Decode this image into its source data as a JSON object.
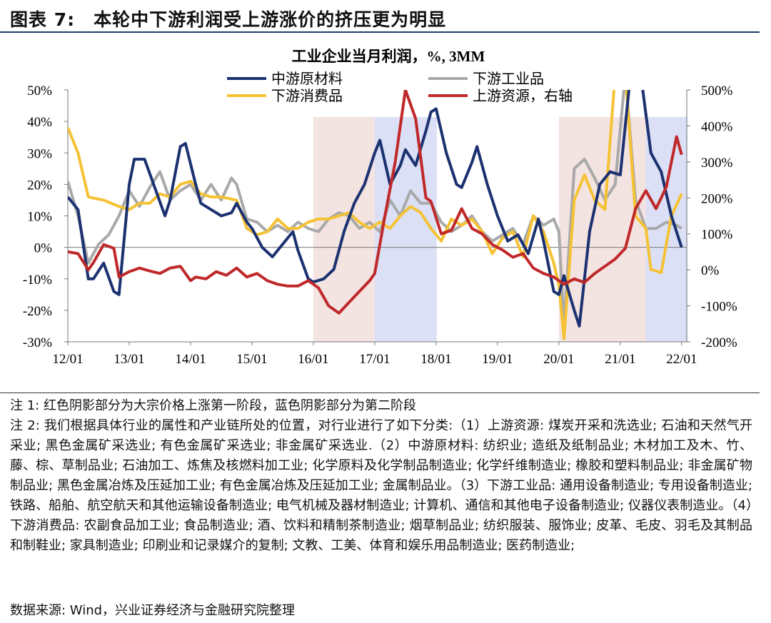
{
  "figure": {
    "title": "图表 7:　本轮中下游利润受上游涨价的挤压更为明显"
  },
  "notes": {
    "note1": "注 1:  红色阴影部分为大宗价格上涨第一阶段，蓝色阴影部分为第二阶段",
    "note2": "注 2:  我们根据具体行业的属性和产业链所处的位置，对行业进行了如下分类:（1）上游资源: 煤炭开采和洗选业; 石油和天然气开采业; 黑色金属矿采选业; 有色金属矿采选业; 非金属矿采选业.（2）中游原材料: 纺织业; 造纸及纸制品业; 木材加工及木、竹、藤、棕、草制品业; 石油加工、炼焦及核燃料加工业; 化学原料及化学制品制造业; 化学纤维制造业; 橡胶和塑料制品业; 非金属矿物制品业; 黑色金属冶炼及压延加工业; 有色金属冶炼及压延加工业; 金属制品业。（3）下游工业品: 通用设备制造业; 专用设备制造业; 铁路、船舶、航空航天和其他运输设备制造业; 电气机械及器材制造业; 计算机、通信和其他电子设备制造业; 仪器仪表制造业。（4）下游消费品: 农副食品加工业; 食品制造业; 酒、饮料和精制茶制造业; 烟草制品业; 纺织服装、服饰业; 皮革、毛皮、羽毛及其制品和制鞋业; 家具制造业; 印刷业和记录媒介的复制; 文教、工美、体育和娱乐用品制造业; 医药制造业;",
    "source": "数据来源: Wind，兴业证券经济与金融研究院整理"
  },
  "chart_data": {
    "type": "line",
    "title": "工业企业当月利润，%, 3MM",
    "x_ticks": [
      "12/01",
      "13/01",
      "14/01",
      "15/01",
      "16/01",
      "17/01",
      "18/01",
      "19/01",
      "20/01",
      "21/01",
      "22/01"
    ],
    "x_range": [
      "2012-01",
      "2022-02"
    ],
    "y_left": {
      "range": [
        -30,
        50
      ],
      "ticks": [
        "50%",
        "40%",
        "30%",
        "20%",
        "10%",
        "0%",
        "-10%",
        "-20%",
        "-30%"
      ]
    },
    "y_right": {
      "range": [
        -200,
        500
      ],
      "ticks": [
        "500%",
        "400%",
        "300%",
        "200%",
        "100%",
        "0%",
        "-100%",
        "-200%"
      ]
    },
    "legend_placement": "top",
    "shaded_regions": [
      {
        "color": "#f2e3e0",
        "from": "2016-01",
        "to": "2016-12"
      },
      {
        "color": "#d9def5",
        "from": "2017-01",
        "to": "2017-12"
      },
      {
        "color": "#f2e3e0",
        "from": "2020-01",
        "to": "2021-05"
      },
      {
        "color": "#d9def5",
        "from": "2021-06",
        "to": "2022-01"
      }
    ],
    "series": [
      {
        "name": "中游原材料",
        "color": "#1c3170",
        "axis": "left",
        "points": [
          [
            "2012-01",
            16
          ],
          [
            "2012-03",
            12
          ],
          [
            "2012-05",
            -10
          ],
          [
            "2012-06",
            -10
          ],
          [
            "2012-08",
            -5
          ],
          [
            "2012-10",
            -14
          ],
          [
            "2012-11",
            -15
          ],
          [
            "2013-01",
            20
          ],
          [
            "2013-02",
            28
          ],
          [
            "2013-04",
            28
          ],
          [
            "2013-06",
            19
          ],
          [
            "2013-08",
            10
          ],
          [
            "2013-09",
            15
          ],
          [
            "2013-11",
            32
          ],
          [
            "2013-12",
            33
          ],
          [
            "2014-02",
            20
          ],
          [
            "2014-03",
            14
          ],
          [
            "2014-05",
            12
          ],
          [
            "2014-07",
            10
          ],
          [
            "2014-09",
            11
          ],
          [
            "2014-10",
            14
          ],
          [
            "2014-12",
            8
          ],
          [
            "2015-01",
            6
          ],
          [
            "2015-03",
            0
          ],
          [
            "2015-05",
            -3
          ],
          [
            "2015-07",
            1
          ],
          [
            "2015-09",
            5
          ],
          [
            "2015-10",
            -1
          ],
          [
            "2015-12",
            -10
          ],
          [
            "2016-01",
            -11
          ],
          [
            "2016-03",
            -10
          ],
          [
            "2016-05",
            -7
          ],
          [
            "2016-07",
            5
          ],
          [
            "2016-09",
            14
          ],
          [
            "2016-11",
            20
          ],
          [
            "2017-01",
            30
          ],
          [
            "2017-02",
            34
          ],
          [
            "2017-04",
            20
          ],
          [
            "2017-06",
            26
          ],
          [
            "2017-07",
            31
          ],
          [
            "2017-09",
            26
          ],
          [
            "2017-11",
            37
          ],
          [
            "2017-12",
            43
          ],
          [
            "2018-01",
            44
          ],
          [
            "2018-03",
            30
          ],
          [
            "2018-05",
            20
          ],
          [
            "2018-06",
            19
          ],
          [
            "2018-08",
            27
          ],
          [
            "2018-09",
            32
          ],
          [
            "2018-11",
            20
          ],
          [
            "2019-01",
            10
          ],
          [
            "2019-03",
            2
          ],
          [
            "2019-05",
            4
          ],
          [
            "2019-07",
            -2
          ],
          [
            "2019-09",
            9
          ],
          [
            "2019-10",
            2
          ],
          [
            "2019-12",
            -14
          ],
          [
            "2020-01",
            -15
          ],
          [
            "2020-02",
            -9
          ],
          [
            "2020-04",
            -20
          ],
          [
            "2020-05",
            -25
          ],
          [
            "2020-07",
            5
          ],
          [
            "2020-09",
            20
          ],
          [
            "2020-11",
            24
          ],
          [
            "2021-01",
            23
          ],
          [
            "2021-03",
            55
          ],
          [
            "2021-05",
            55
          ],
          [
            "2021-07",
            30
          ],
          [
            "2021-09",
            24
          ],
          [
            "2021-11",
            10
          ],
          [
            "2022-01",
            0
          ]
        ]
      },
      {
        "name": "下游工业品",
        "color": "#a9a9a9",
        "axis": "left",
        "points": [
          [
            "2012-01",
            21
          ],
          [
            "2012-03",
            10
          ],
          [
            "2012-05",
            -5
          ],
          [
            "2012-07",
            1
          ],
          [
            "2012-09",
            4
          ],
          [
            "2012-11",
            10
          ],
          [
            "2013-01",
            18
          ],
          [
            "2013-03",
            13
          ],
          [
            "2013-05",
            19
          ],
          [
            "2013-07",
            24
          ],
          [
            "2013-09",
            15
          ],
          [
            "2013-11",
            18
          ],
          [
            "2014-01",
            20
          ],
          [
            "2014-03",
            15
          ],
          [
            "2014-05",
            20
          ],
          [
            "2014-07",
            15
          ],
          [
            "2014-09",
            22
          ],
          [
            "2014-10",
            20
          ],
          [
            "2014-12",
            9
          ],
          [
            "2015-02",
            8
          ],
          [
            "2015-04",
            5
          ],
          [
            "2015-06",
            7
          ],
          [
            "2015-08",
            5
          ],
          [
            "2015-10",
            8
          ],
          [
            "2015-12",
            6
          ],
          [
            "2016-02",
            5
          ],
          [
            "2016-04",
            9
          ],
          [
            "2016-06",
            11
          ],
          [
            "2016-08",
            10
          ],
          [
            "2016-10",
            6
          ],
          [
            "2016-12",
            8
          ],
          [
            "2017-02",
            5
          ],
          [
            "2017-04",
            15
          ],
          [
            "2017-06",
            10
          ],
          [
            "2017-08",
            18
          ],
          [
            "2017-10",
            14
          ],
          [
            "2017-12",
            14
          ],
          [
            "2018-02",
            8
          ],
          [
            "2018-04",
            5
          ],
          [
            "2018-06",
            7
          ],
          [
            "2018-08",
            10
          ],
          [
            "2018-10",
            5
          ],
          [
            "2018-12",
            2
          ],
          [
            "2019-02",
            4
          ],
          [
            "2019-04",
            6
          ],
          [
            "2019-06",
            1
          ],
          [
            "2019-08",
            10
          ],
          [
            "2019-10",
            7
          ],
          [
            "2019-12",
            9
          ],
          [
            "2020-01",
            5
          ],
          [
            "2020-02",
            -25
          ],
          [
            "2020-04",
            25
          ],
          [
            "2020-06",
            28
          ],
          [
            "2020-08",
            22
          ],
          [
            "2020-10",
            15
          ],
          [
            "2020-12",
            20
          ],
          [
            "2021-02",
            55
          ],
          [
            "2021-04",
            15
          ],
          [
            "2021-06",
            6
          ],
          [
            "2021-08",
            6
          ],
          [
            "2021-10",
            8
          ],
          [
            "2021-12",
            7
          ],
          [
            "2022-01",
            6
          ]
        ]
      },
      {
        "name": "下游消费品",
        "color": "#f5c234",
        "axis": "left",
        "points": [
          [
            "2012-01",
            38
          ],
          [
            "2012-03",
            30
          ],
          [
            "2012-05",
            16
          ],
          [
            "2012-08",
            15
          ],
          [
            "2012-11",
            13
          ],
          [
            "2013-01",
            12
          ],
          [
            "2013-03",
            14
          ],
          [
            "2013-05",
            14
          ],
          [
            "2013-07",
            17
          ],
          [
            "2013-09",
            16
          ],
          [
            "2013-11",
            20
          ],
          [
            "2014-01",
            21
          ],
          [
            "2014-03",
            17
          ],
          [
            "2014-05",
            16
          ],
          [
            "2014-07",
            16
          ],
          [
            "2014-10",
            15
          ],
          [
            "2014-12",
            6
          ],
          [
            "2015-02",
            4
          ],
          [
            "2015-04",
            5
          ],
          [
            "2015-06",
            9
          ],
          [
            "2015-08",
            6
          ],
          [
            "2015-10",
            6
          ],
          [
            "2015-12",
            8
          ],
          [
            "2016-02",
            9
          ],
          [
            "2016-04",
            9
          ],
          [
            "2016-06",
            10
          ],
          [
            "2016-08",
            11
          ],
          [
            "2016-10",
            8
          ],
          [
            "2016-12",
            6
          ],
          [
            "2017-02",
            8
          ],
          [
            "2017-04",
            6
          ],
          [
            "2017-06",
            10
          ],
          [
            "2017-08",
            13
          ],
          [
            "2017-10",
            11
          ],
          [
            "2017-12",
            6
          ],
          [
            "2018-02",
            2
          ],
          [
            "2018-04",
            9
          ],
          [
            "2018-06",
            7
          ],
          [
            "2018-08",
            9
          ],
          [
            "2018-10",
            5
          ],
          [
            "2018-12",
            -2
          ],
          [
            "2019-02",
            3
          ],
          [
            "2019-04",
            5
          ],
          [
            "2019-06",
            -3
          ],
          [
            "2019-08",
            10
          ],
          [
            "2019-10",
            5
          ],
          [
            "2019-12",
            -5
          ],
          [
            "2020-01",
            -12
          ],
          [
            "2020-02",
            -29
          ],
          [
            "2020-04",
            15
          ],
          [
            "2020-06",
            23
          ],
          [
            "2020-08",
            15
          ],
          [
            "2020-10",
            12
          ],
          [
            "2020-12",
            55
          ],
          [
            "2021-02",
            55
          ],
          [
            "2021-04",
            10
          ],
          [
            "2021-06",
            6
          ],
          [
            "2021-07",
            -7
          ],
          [
            "2021-09",
            -8
          ],
          [
            "2021-11",
            10
          ],
          [
            "2022-01",
            17
          ]
        ]
      },
      {
        "name": "上游资源，右轴",
        "color": "#c0282a",
        "axis": "right",
        "points": [
          [
            "2012-01",
            50
          ],
          [
            "2012-03",
            45
          ],
          [
            "2012-05",
            0
          ],
          [
            "2012-06",
            20
          ],
          [
            "2012-08",
            70
          ],
          [
            "2012-10",
            60
          ],
          [
            "2012-11",
            -20
          ],
          [
            "2013-01",
            -5
          ],
          [
            "2013-03",
            5
          ],
          [
            "2013-05",
            -3
          ],
          [
            "2013-07",
            -10
          ],
          [
            "2013-09",
            5
          ],
          [
            "2013-11",
            10
          ],
          [
            "2014-01",
            -30
          ],
          [
            "2014-02",
            -20
          ],
          [
            "2014-04",
            -25
          ],
          [
            "2014-06",
            -5
          ],
          [
            "2014-08",
            -15
          ],
          [
            "2014-10",
            5
          ],
          [
            "2014-12",
            -20
          ],
          [
            "2015-02",
            -10
          ],
          [
            "2015-04",
            -30
          ],
          [
            "2015-06",
            -40
          ],
          [
            "2015-08",
            -45
          ],
          [
            "2015-10",
            -45
          ],
          [
            "2015-12",
            -30
          ],
          [
            "2016-02",
            -50
          ],
          [
            "2016-04",
            -100
          ],
          [
            "2016-06",
            -120
          ],
          [
            "2016-08",
            -90
          ],
          [
            "2016-10",
            -60
          ],
          [
            "2016-12",
            -30
          ],
          [
            "2017-01",
            -10
          ],
          [
            "2017-03",
            150
          ],
          [
            "2017-05",
            300
          ],
          [
            "2017-07",
            500
          ],
          [
            "2017-09",
            420
          ],
          [
            "2017-11",
            200
          ],
          [
            "2017-12",
            190
          ],
          [
            "2018-02",
            100
          ],
          [
            "2018-04",
            110
          ],
          [
            "2018-06",
            170
          ],
          [
            "2018-08",
            115
          ],
          [
            "2018-10",
            100
          ],
          [
            "2018-12",
            70
          ],
          [
            "2019-02",
            55
          ],
          [
            "2019-04",
            35
          ],
          [
            "2019-06",
            45
          ],
          [
            "2019-08",
            5
          ],
          [
            "2019-10",
            -10
          ],
          [
            "2019-12",
            -20
          ],
          [
            "2020-02",
            -40
          ],
          [
            "2020-04",
            -25
          ],
          [
            "2020-06",
            -35
          ],
          [
            "2020-08",
            -10
          ],
          [
            "2020-10",
            10
          ],
          [
            "2020-12",
            30
          ],
          [
            "2021-02",
            60
          ],
          [
            "2021-04",
            170
          ],
          [
            "2021-06",
            220
          ],
          [
            "2021-08",
            170
          ],
          [
            "2021-10",
            230
          ],
          [
            "2021-12",
            370
          ],
          [
            "2022-01",
            320
          ]
        ]
      }
    ]
  }
}
